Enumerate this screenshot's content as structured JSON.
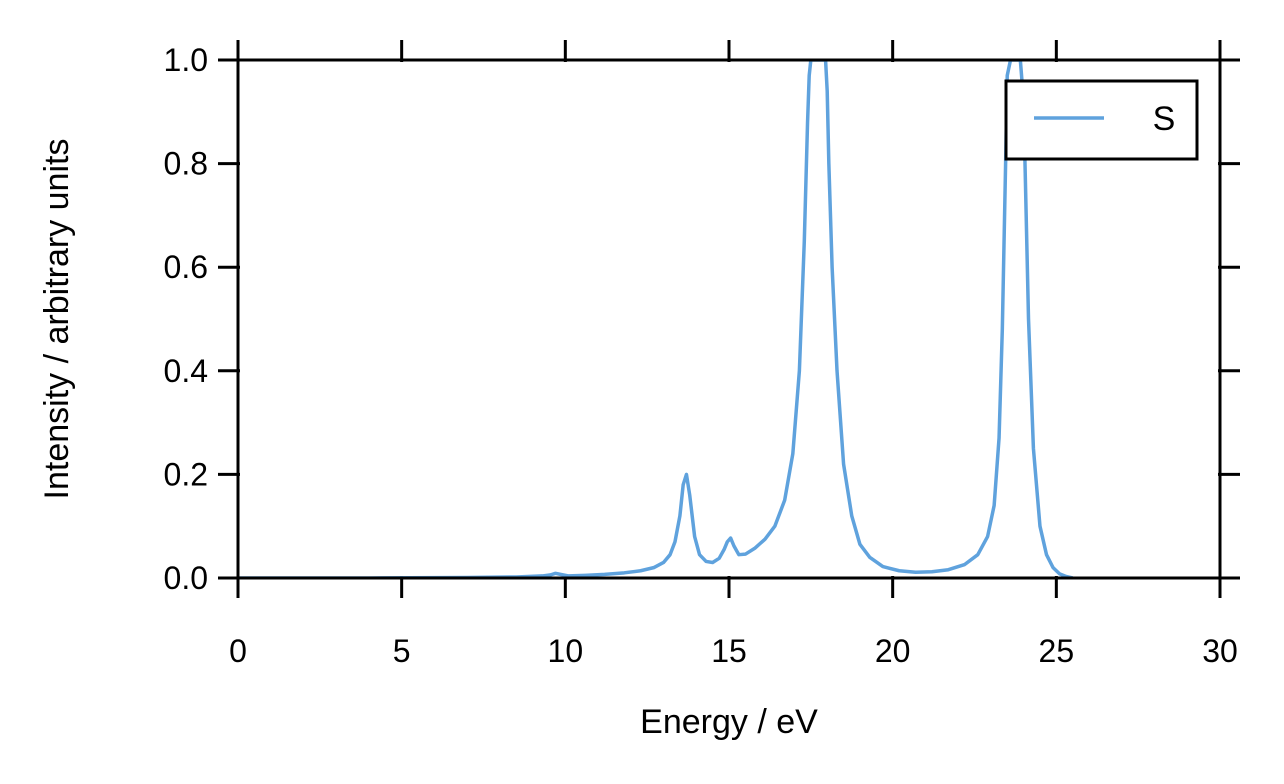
{
  "chart_data": {
    "type": "line",
    "xlabel": "Energy / eV",
    "ylabel": "Intensity / arbitrary units",
    "xlim": [
      0,
      30
    ],
    "ylim": [
      0,
      1.0
    ],
    "xticks": [
      0,
      5,
      10,
      15,
      20,
      25,
      30
    ],
    "xtick_labels": [
      "0",
      "5",
      "10",
      "15",
      "20",
      "25",
      "30"
    ],
    "yticks": [
      0.0,
      0.2,
      0.4,
      0.6,
      0.8,
      1.0
    ],
    "ytick_labels": [
      "0.0",
      "0.2",
      "0.4",
      "0.6",
      "0.8",
      "1.0"
    ],
    "grid": false,
    "legend_position": "top-right",
    "series": [
      {
        "name": "S",
        "color": "#5fa2dd",
        "x": [
          0,
          4,
          7,
          8.5,
          9.3,
          9.55,
          9.7,
          9.85,
          10.1,
          10.6,
          11.2,
          11.8,
          12.3,
          12.7,
          13.0,
          13.2,
          13.35,
          13.5,
          13.6,
          13.7,
          13.8,
          13.95,
          14.1,
          14.3,
          14.5,
          14.7,
          14.85,
          14.95,
          15.05,
          15.15,
          15.3,
          15.5,
          15.8,
          16.1,
          16.4,
          16.7,
          16.95,
          17.15,
          17.3,
          17.4,
          17.45,
          17.5,
          17.7,
          17.95,
          18.0,
          18.05,
          18.15,
          18.3,
          18.5,
          18.75,
          19.0,
          19.3,
          19.7,
          20.2,
          20.7,
          21.2,
          21.7,
          22.2,
          22.6,
          22.9,
          23.1,
          23.25,
          23.35,
          23.45,
          23.5,
          23.6,
          23.9,
          24.0,
          24.05,
          24.15,
          24.3,
          24.5,
          24.7,
          24.9,
          25.1,
          25.3,
          25.5
        ],
        "y": [
          0.0,
          0.0,
          0.001,
          0.002,
          0.004,
          0.006,
          0.009,
          0.007,
          0.004,
          0.005,
          0.007,
          0.01,
          0.014,
          0.02,
          0.03,
          0.045,
          0.07,
          0.12,
          0.18,
          0.2,
          0.16,
          0.08,
          0.045,
          0.032,
          0.03,
          0.038,
          0.055,
          0.07,
          0.077,
          0.062,
          0.045,
          0.046,
          0.058,
          0.075,
          0.1,
          0.15,
          0.24,
          0.4,
          0.65,
          0.88,
          0.97,
          1.0,
          1.0,
          1.0,
          0.94,
          0.8,
          0.6,
          0.4,
          0.22,
          0.12,
          0.065,
          0.04,
          0.022,
          0.014,
          0.011,
          0.012,
          0.016,
          0.026,
          0.045,
          0.08,
          0.14,
          0.27,
          0.48,
          0.8,
          0.97,
          1.0,
          1.0,
          0.92,
          0.78,
          0.5,
          0.25,
          0.1,
          0.045,
          0.02,
          0.008,
          0.003,
          0.0
        ]
      }
    ]
  }
}
